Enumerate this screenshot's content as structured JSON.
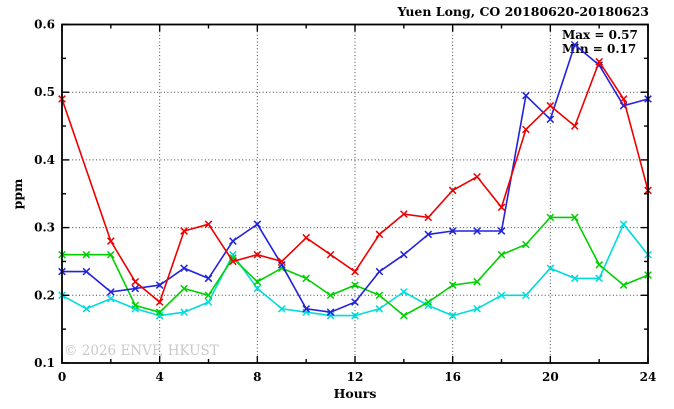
{
  "header": {
    "title": "Yuen Long, CO 20180620-20180623"
  },
  "annotations": {
    "max": "Max = 0.57",
    "min": "Min = 0.17"
  },
  "watermark": {
    "text": "© 2026 ENVF, HKUST"
  },
  "axes": {
    "x_label": "Hours",
    "y_label": "ppm"
  },
  "chart_data": {
    "type": "line",
    "title": "Yuen Long, CO 20180620-20180623",
    "xlabel": "Hours",
    "ylabel": "ppm",
    "xlim": [
      0,
      24
    ],
    "ylim": [
      0.1,
      0.6
    ],
    "x_major_ticks": [
      0,
      4,
      8,
      12,
      16,
      20,
      24
    ],
    "x_minor_ticks": [
      2,
      6,
      10,
      14,
      18,
      22
    ],
    "y_major_ticks": [
      0.1,
      0.2,
      0.3,
      0.4,
      0.5,
      0.6
    ],
    "y_minor_ticks": [
      0.15,
      0.25,
      0.35,
      0.45,
      0.55
    ],
    "grid": "dotted black at major ticks, mirrored inward ticks on all four sides",
    "legend": "none",
    "stat_max": 0.57,
    "stat_min": 0.17,
    "x": [
      0,
      1,
      2,
      3,
      4,
      5,
      6,
      7,
      8,
      9,
      10,
      11,
      12,
      13,
      14,
      15,
      16,
      17,
      18,
      19,
      20,
      21,
      22,
      23,
      24
    ],
    "series": [
      {
        "name": "cyan",
        "color": "#00dcdc",
        "values": [
          0.2,
          0.18,
          0.195,
          0.18,
          0.17,
          0.175,
          0.19,
          0.26,
          0.21,
          0.18,
          0.175,
          0.17,
          0.17,
          0.18,
          0.205,
          0.185,
          0.17,
          0.18,
          0.2,
          0.2,
          0.24,
          0.225,
          0.225,
          0.305,
          0.26
        ]
      },
      {
        "name": "green",
        "color": "#00d000",
        "values": [
          0.26,
          0.26,
          0.26,
          0.185,
          0.175,
          0.21,
          0.2,
          0.255,
          0.22,
          0.24,
          0.225,
          0.2,
          0.215,
          0.2,
          0.17,
          0.19,
          0.215,
          0.22,
          0.26,
          0.275,
          0.315,
          0.315,
          0.245,
          0.215,
          0.23
        ]
      },
      {
        "name": "blue",
        "color": "#2222dd",
        "values": [
          0.235,
          0.235,
          0.205,
          0.21,
          0.215,
          0.24,
          0.225,
          0.28,
          0.305,
          0.245,
          0.18,
          0.175,
          0.19,
          0.235,
          0.26,
          0.29,
          0.295,
          0.295,
          0.295,
          0.495,
          0.46,
          0.57,
          0.54,
          0.48,
          0.49
        ]
      },
      {
        "name": "red",
        "color": "#ee0000",
        "values": [
          0.49,
          null,
          0.28,
          0.22,
          0.19,
          0.295,
          0.305,
          0.25,
          0.26,
          0.25,
          0.285,
          0.26,
          0.235,
          0.29,
          0.32,
          0.315,
          0.355,
          0.375,
          0.33,
          0.445,
          0.48,
          0.45,
          0.545,
          0.49,
          0.355
        ]
      }
    ]
  }
}
